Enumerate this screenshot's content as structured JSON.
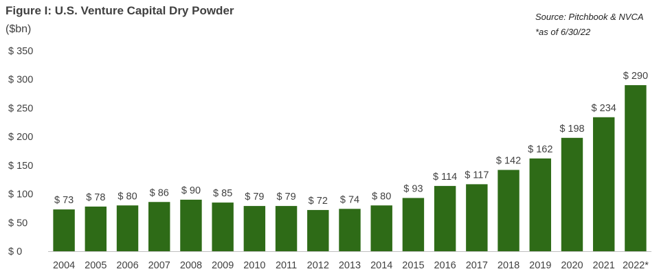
{
  "chart_data": {
    "type": "bar",
    "title": "Figure I: U.S. Venture Capital Dry Powder",
    "ylabel": "($bn)",
    "source": "Source: Pitchbook & NVCA",
    "note": "*as of 6/30/22",
    "categories": [
      "2004",
      "2005",
      "2006",
      "2007",
      "2008",
      "2009",
      "2010",
      "2011",
      "2012",
      "2013",
      "2014",
      "2015",
      "2016",
      "2017",
      "2018",
      "2019",
      "2020",
      "2021",
      "2022*"
    ],
    "values": [
      73,
      78,
      80,
      86,
      90,
      85,
      79,
      79,
      72,
      74,
      80,
      93,
      114,
      117,
      142,
      162,
      198,
      234,
      290
    ],
    "data_labels": [
      "$ 73",
      "$ 78",
      "$ 80",
      "$ 86",
      "$ 90",
      "$ 85",
      "$ 79",
      "$ 79",
      "$ 72",
      "$ 74",
      "$ 80",
      "$ 93",
      "$ 114",
      "$ 117",
      "$ 142",
      "$ 162",
      "$ 198",
      "$ 234",
      "$ 290"
    ],
    "yticks": [
      0,
      50,
      100,
      150,
      200,
      250,
      300,
      350
    ],
    "ytick_labels": [
      "$ 0",
      "$ 50",
      "$ 100",
      "$ 150",
      "$ 200",
      "$ 250",
      "$ 300",
      "$ 350"
    ],
    "ylim": [
      0,
      350
    ],
    "grid": false,
    "bar_color": "#2E6B17"
  }
}
